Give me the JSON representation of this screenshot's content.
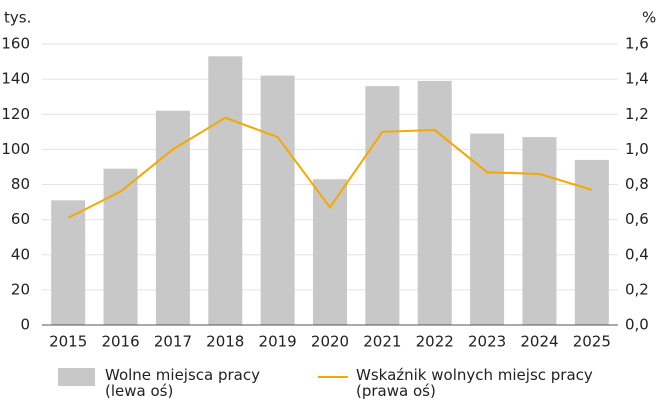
{
  "chart_data": {
    "type": "bar-line",
    "y_unit": "tys.",
    "y2_unit": "%",
    "categories": [
      "2015",
      "2016",
      "2017",
      "2018",
      "2019",
      "2020",
      "2021",
      "2022",
      "2023",
      "2024",
      "2025"
    ],
    "series": [
      {
        "name": "Wolne miejsca pracy (lewa oś)",
        "type": "bar",
        "color": "#c8c8c8",
        "values": [
          71,
          89,
          122,
          153,
          142,
          83,
          136,
          139,
          109,
          107,
          94
        ]
      },
      {
        "name": "Wskaźnik wolnych miejsc pracy (prawa oś)",
        "type": "line",
        "axis": "y2",
        "color": "#f5a800",
        "values": [
          0.61,
          0.76,
          1.0,
          1.18,
          1.07,
          0.67,
          1.1,
          1.11,
          0.87,
          0.86,
          0.77
        ]
      }
    ],
    "ylim": [
      0,
      160
    ],
    "yticks": [
      0,
      20,
      40,
      60,
      80,
      100,
      120,
      140,
      160
    ],
    "y2lim": [
      0,
      1.6
    ],
    "y2ticks": [
      {
        "value": 0,
        "label": "0,0"
      },
      {
        "value": 0.2,
        "label": "0,2"
      },
      {
        "value": 0.4,
        "label": "0,4"
      },
      {
        "value": 0.6,
        "label": "0,6"
      },
      {
        "value": 0.8,
        "label": "0,8"
      },
      {
        "value": 1.0,
        "label": "1,0"
      },
      {
        "value": 1.2,
        "label": "1,2"
      },
      {
        "value": 1.4,
        "label": "1,4"
      },
      {
        "value": 1.6,
        "label": "1,6"
      }
    ],
    "grid": true
  }
}
